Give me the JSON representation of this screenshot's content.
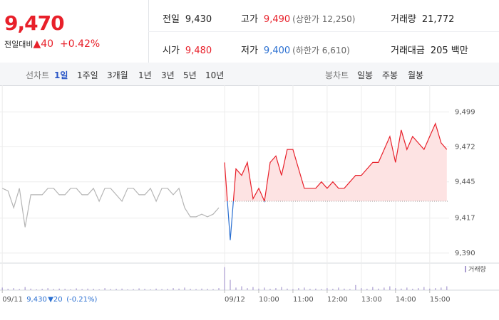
{
  "quote": {
    "price": "9,470",
    "change_label": "전일대비",
    "change": "▲40",
    "change_pct": "+0.42%"
  },
  "info": [
    {
      "label": "전일",
      "value": "9,430"
    },
    {
      "label": "고가",
      "value": "9,490",
      "note": "(상한가 12,250)"
    },
    {
      "label": "거래량",
      "value": "21,772"
    },
    {
      "label": "시가",
      "value": "9,480"
    },
    {
      "label": "저가",
      "value": "9,400",
      "note": "(하한가 6,610)"
    },
    {
      "label": "거래대금",
      "value": "205 백만"
    }
  ],
  "tabs": {
    "line_label": "선차트",
    "line_periods": [
      "1일",
      "1주일",
      "3개월",
      "1년",
      "3년",
      "5년",
      "10년"
    ],
    "candle_label": "봉차트",
    "candle_periods": [
      "일봉",
      "주봉",
      "월봉"
    ]
  },
  "chart_data": {
    "type": "line",
    "x": [
      -390,
      -380,
      -370,
      -360,
      -350,
      -340,
      -330,
      -320,
      -310,
      -300,
      -290,
      -280,
      -270,
      -260,
      -250,
      -240,
      -230,
      -220,
      -210,
      -200,
      -190,
      -180,
      -170,
      -160,
      -150,
      -140,
      -130,
      -120,
      -110,
      -100,
      -90,
      -80,
      -70,
      -60,
      -50,
      -40,
      -30,
      -20,
      -10,
      0,
      10,
      20,
      30,
      40,
      50,
      60,
      70,
      80,
      90,
      100,
      110,
      120,
      130,
      140,
      150,
      160,
      170,
      180,
      190,
      200,
      210,
      220,
      230,
      240,
      250,
      260,
      270,
      280,
      290,
      300,
      310,
      320,
      330,
      340,
      350,
      360,
      370,
      380,
      390
    ],
    "xlim": [
      -394,
      394
    ],
    "xticks": [
      {
        "value": -390,
        "label": "09/11"
      },
      {
        "value": 0,
        "label": "09/12"
      },
      {
        "value": 60,
        "label": "10:00"
      },
      {
        "value": 120,
        "label": "11:00"
      },
      {
        "value": 180,
        "label": "12:00"
      },
      {
        "value": 240,
        "label": "13:00"
      },
      {
        "value": 300,
        "label": "14:00"
      },
      {
        "value": 360,
        "label": "15:00"
      }
    ],
    "ylim": [
      9385,
      9514
    ],
    "yticks": [
      {
        "value": 9390,
        "label": "9,390"
      },
      {
        "value": 9417,
        "label": "9,417"
      },
      {
        "value": 9445,
        "label": "9,445"
      },
      {
        "value": 9472,
        "label": "9,472"
      },
      {
        "value": 9499,
        "label": "9,499"
      }
    ],
    "y2lim": [
      0,
      100
    ],
    "reference": 9430,
    "grid": true,
    "prev_close": "9,430",
    "prev_change": "▼20",
    "prev_change_pct": "(-0.21%)",
    "series": [
      {
        "name": "09/11",
        "color": "#b5b5b5",
        "values": [
          9440,
          9438,
          9425,
          9440,
          9410,
          9435,
          9435,
          9435,
          9440,
          9440,
          9435,
          9435,
          9440,
          9440,
          9435,
          9435,
          9440,
          9430,
          9440,
          9440,
          9435,
          9430,
          9440,
          9440,
          9435,
          9435,
          9440,
          9430,
          9440,
          9440,
          9435,
          9440,
          9425,
          9418,
          9418,
          9420,
          9418,
          9420,
          9425,
          null,
          null,
          null,
          null,
          null,
          null,
          null,
          null,
          null,
          null,
          null,
          null,
          null,
          null,
          null,
          null,
          null,
          null,
          null,
          null,
          null,
          null,
          null,
          null,
          null,
          null,
          null,
          null,
          null,
          null,
          null,
          null,
          null,
          null,
          null,
          null,
          null,
          null,
          null,
          null
        ]
      },
      {
        "name": "09/12",
        "color": "#e8202a",
        "down_color": "#2a6fd1",
        "fill": "#fde3e3",
        "values": [
          null,
          null,
          null,
          null,
          null,
          null,
          null,
          null,
          null,
          null,
          null,
          null,
          null,
          null,
          null,
          null,
          null,
          null,
          null,
          null,
          null,
          null,
          null,
          null,
          null,
          null,
          null,
          null,
          null,
          null,
          null,
          null,
          null,
          null,
          null,
          null,
          null,
          null,
          null,
          9460,
          9400,
          9455,
          9450,
          9460,
          9432,
          9440,
          9430,
          9460,
          9465,
          9450,
          9470,
          9470,
          9455,
          9440,
          9440,
          9440,
          9445,
          9440,
          9445,
          9440,
          9440,
          9445,
          9450,
          9450,
          9455,
          9460,
          9460,
          9470,
          9480,
          9460,
          9485,
          9470,
          9480,
          9475,
          9470,
          9480,
          9490,
          9475,
          9470
        ]
      },
      {
        "name": "거래량",
        "color": "#a99bd0",
        "axis": "y2",
        "values": [
          10,
          5,
          8,
          4,
          12,
          6,
          3,
          5,
          8,
          4,
          6,
          5,
          3,
          7,
          4,
          6,
          5,
          3,
          8,
          4,
          5,
          6,
          3,
          4,
          7,
          5,
          3,
          6,
          4,
          5,
          8,
          6,
          10,
          5,
          4,
          6,
          5,
          4,
          8,
          90,
          40,
          10,
          15,
          8,
          12,
          6,
          10,
          5,
          8,
          12,
          6,
          4,
          8,
          10,
          5,
          6,
          4,
          8,
          5,
          10,
          6,
          4,
          20,
          8,
          5,
          12,
          6,
          10,
          15,
          8,
          6,
          10,
          5,
          8,
          12,
          6,
          8,
          10,
          15
        ]
      }
    ]
  }
}
